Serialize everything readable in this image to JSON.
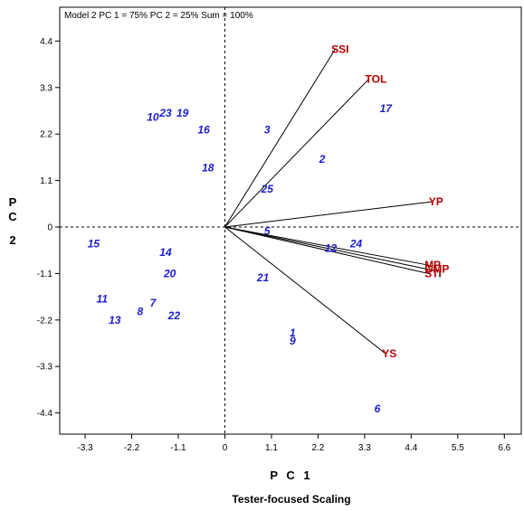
{
  "chart_data": {
    "type": "scatter",
    "title": "Model 2 PC 1 = 75% PC 2 = 25% Sum = 100%",
    "xlabel": "P C 1",
    "ylabel": "P C 2",
    "subtitle": "Tester-focused Scaling",
    "xlim": [
      -3.9,
      7.0
    ],
    "ylim": [
      -4.9,
      5.2
    ],
    "x_ticks": [
      "-3.3",
      "-2.2",
      "-1.1",
      "0",
      "1.1",
      "2.2",
      "3.3",
      "4.4",
      "5.5",
      "6.6"
    ],
    "y_ticks": [
      "4.4",
      "3.3",
      "2.2",
      "1.1",
      "0",
      "-1.1",
      "-2.2",
      "-3.3",
      "-4.4"
    ],
    "colors": {
      "entries": "#1c1cd0",
      "testers": "#b50000",
      "vectors": "#000000"
    },
    "entries": [
      {
        "label": "1",
        "x": 1.6,
        "y": -2.5
      },
      {
        "label": "2",
        "x": 2.3,
        "y": 1.6
      },
      {
        "label": "3",
        "x": 1.0,
        "y": 2.3
      },
      {
        "label": "5",
        "x": 1.0,
        "y": -0.1
      },
      {
        "label": "6",
        "x": 3.6,
        "y": -4.3
      },
      {
        "label": "7",
        "x": -1.7,
        "y": -1.8
      },
      {
        "label": "8",
        "x": -2.0,
        "y": -2.0
      },
      {
        "label": "9",
        "x": 1.6,
        "y": -2.7
      },
      {
        "label": "10",
        "x": -1.7,
        "y": 2.6
      },
      {
        "label": "11",
        "x": -2.9,
        "y": -1.7
      },
      {
        "label": "12",
        "x": 2.5,
        "y": -0.5
      },
      {
        "label": "13",
        "x": -2.6,
        "y": -2.2
      },
      {
        "label": "14",
        "x": -1.4,
        "y": -0.6
      },
      {
        "label": "15",
        "x": -3.1,
        "y": -0.4
      },
      {
        "label": "16",
        "x": -0.5,
        "y": 2.3
      },
      {
        "label": "17",
        "x": 3.8,
        "y": 2.8
      },
      {
        "label": "18",
        "x": -0.4,
        "y": 1.4
      },
      {
        "label": "19",
        "x": -1.0,
        "y": 2.7
      },
      {
        "label": "20",
        "x": -1.3,
        "y": -1.1
      },
      {
        "label": "21",
        "x": 0.9,
        "y": -1.2
      },
      {
        "label": "22",
        "x": -1.2,
        "y": -2.1
      },
      {
        "label": "23",
        "x": -1.4,
        "y": 2.7
      },
      {
        "label": "24",
        "x": 3.1,
        "y": -0.4
      },
      {
        "label": "25",
        "x": 1.0,
        "y": 0.9
      }
    ],
    "testers": [
      {
        "label": "SSI",
        "x": 2.6,
        "y": 4.2
      },
      {
        "label": "TOL",
        "x": 3.4,
        "y": 3.5
      },
      {
        "label": "YP",
        "x": 4.9,
        "y": 0.6
      },
      {
        "label": "MP",
        "x": 4.8,
        "y": -0.9
      },
      {
        "label": "GMP",
        "x": 4.8,
        "y": -1.0
      },
      {
        "label": "STI",
        "x": 4.8,
        "y": -1.1
      },
      {
        "label": "YS",
        "x": 3.8,
        "y": -3.0
      }
    ]
  }
}
